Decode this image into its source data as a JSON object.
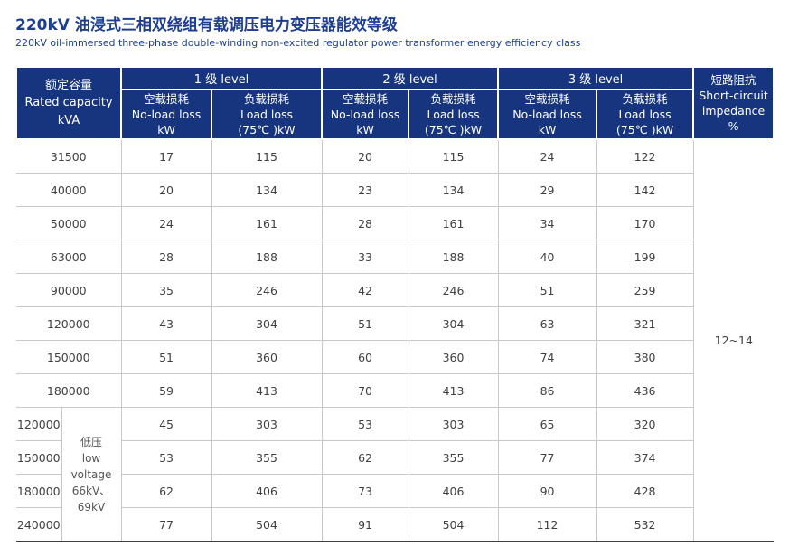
{
  "page": {
    "title": "220kV 油浸式三相双绕组有载调压电力变压器能效等级",
    "subtitle": "220kV oil-immersed three-phase double-winding non-excited regulator power transformer energy efficiency class"
  },
  "colors": {
    "header_navy": "#17357e",
    "title_navy": "#1d3e91",
    "grid_line": "#c9c9c9",
    "cell_text": "#404040",
    "bottom_rule": "#3f3f3f"
  },
  "table": {
    "capacity_header": {
      "zh": "额定容量",
      "en": "Rated capacity",
      "unit": "kVA"
    },
    "level_groups": [
      {
        "label": "1 级 level"
      },
      {
        "label": "2 级 level"
      },
      {
        "label": "3 级 level"
      }
    ],
    "loss_headers": {
      "no_load": {
        "zh": "空载损耗",
        "en": "No-load loss",
        "unit": "kW"
      },
      "load": {
        "zh": "负载损耗",
        "en": "Load loss",
        "unit": "(75℃ )kW"
      }
    },
    "impedance_header": {
      "zh": "短路阻抗",
      "en1": "Short-circuit",
      "en2": "impedance",
      "unit": "%"
    },
    "impedance_value": "12~14",
    "low_voltage_note": {
      "lines": [
        "低压",
        "low",
        "voltage",
        "66kV、",
        "69kV"
      ]
    },
    "rows_main": [
      {
        "capacity": "31500",
        "values": [
          "17",
          "115",
          "20",
          "115",
          "24",
          "122"
        ]
      },
      {
        "capacity": "40000",
        "values": [
          "20",
          "134",
          "23",
          "134",
          "29",
          "142"
        ]
      },
      {
        "capacity": "50000",
        "values": [
          "24",
          "161",
          "28",
          "161",
          "34",
          "170"
        ]
      },
      {
        "capacity": "63000",
        "values": [
          "28",
          "188",
          "33",
          "188",
          "40",
          "199"
        ]
      },
      {
        "capacity": "90000",
        "values": [
          "35",
          "246",
          "42",
          "246",
          "51",
          "259"
        ]
      },
      {
        "capacity": "120000",
        "values": [
          "43",
          "304",
          "51",
          "304",
          "63",
          "321"
        ]
      },
      {
        "capacity": "150000",
        "values": [
          "51",
          "360",
          "60",
          "360",
          "74",
          "380"
        ]
      },
      {
        "capacity": "180000",
        "values": [
          "59",
          "413",
          "70",
          "413",
          "86",
          "436"
        ]
      }
    ],
    "rows_low_voltage": [
      {
        "capacity": "120000",
        "values": [
          "45",
          "303",
          "53",
          "303",
          "65",
          "320"
        ]
      },
      {
        "capacity": "150000",
        "values": [
          "53",
          "355",
          "62",
          "355",
          "77",
          "374"
        ]
      },
      {
        "capacity": "180000",
        "values": [
          "62",
          "406",
          "73",
          "406",
          "90",
          "428"
        ]
      },
      {
        "capacity": "240000",
        "values": [
          "77",
          "504",
          "91",
          "504",
          "112",
          "532"
        ]
      }
    ]
  }
}
